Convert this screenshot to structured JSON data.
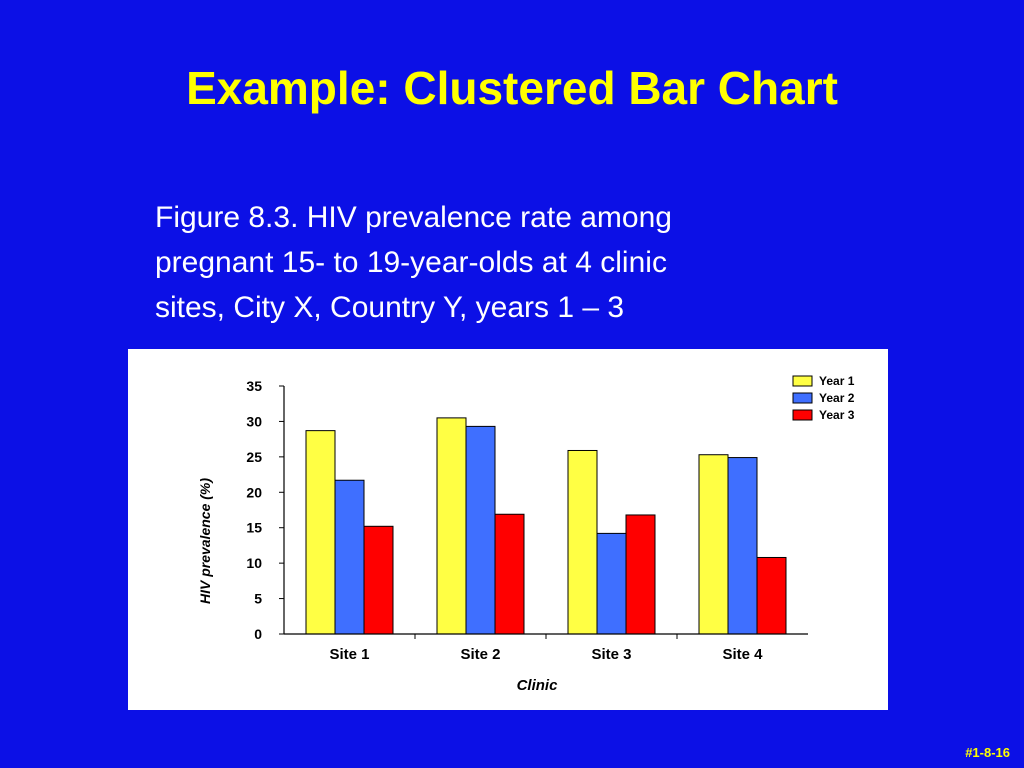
{
  "slide": {
    "title": "Example: Clustered Bar Chart",
    "caption_lines": [
      "Figure 8.3. HIV prevalence rate among",
      "pregnant 15- to 19-year-olds at 4 clinic",
      "sites, City X, Country Y, years 1 – 3"
    ],
    "footer": "#1-8-16"
  },
  "chart_data": {
    "type": "bar",
    "title": "",
    "xlabel": "Clinic",
    "ylabel": "HIV prevalence (%)",
    "categories": [
      "Site 1",
      "Site 2",
      "Site 3",
      "Site 4"
    ],
    "series": [
      {
        "name": "Year 1",
        "color": "#ffff44",
        "values": [
          28.7,
          30.5,
          25.9,
          25.3
        ]
      },
      {
        "name": "Year 2",
        "color": "#3f6fff",
        "values": [
          21.7,
          29.3,
          14.2,
          24.9
        ]
      },
      {
        "name": "Year 3",
        "color": "#ff0000",
        "values": [
          15.2,
          16.9,
          16.8,
          10.8
        ]
      }
    ],
    "ylim": [
      0,
      35
    ],
    "yticks": [
      0,
      5,
      10,
      15,
      20,
      25,
      30,
      35
    ],
    "grid": false,
    "legend": "top-right"
  }
}
